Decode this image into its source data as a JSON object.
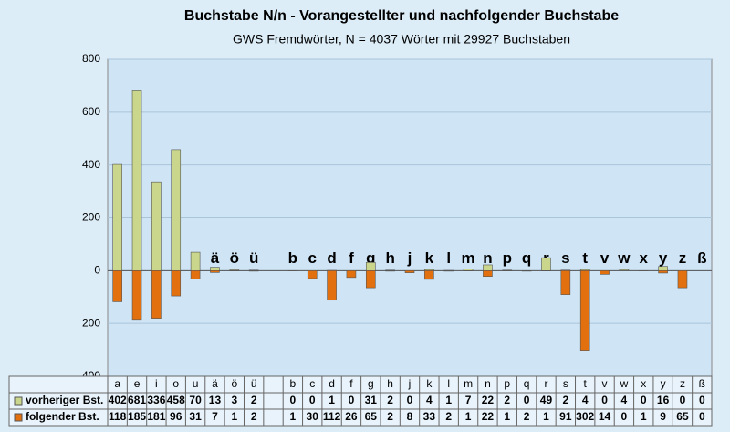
{
  "chart_data": {
    "type": "bar",
    "title": "Buchstabe N/n - Vorangestellter und nachfolgender Buchstabe",
    "subtitle": "GWS Fremdwörter,  N = 4037 Wörter mit 29927 Buchstaben",
    "categories": [
      "a",
      "e",
      "i",
      "o",
      "u",
      "ä",
      "ö",
      "ü",
      null,
      "b",
      "c",
      "d",
      "f",
      "g",
      "h",
      "j",
      "k",
      "l",
      "m",
      "n",
      "p",
      "q",
      "r",
      "s",
      "t",
      "v",
      "w",
      "x",
      "y",
      "z",
      "ß"
    ],
    "series": [
      {
        "name": "vorheriger Bst.",
        "color": "#c9d68c",
        "values": [
          402,
          681,
          336,
          458,
          70,
          13,
          3,
          2,
          null,
          0,
          0,
          1,
          0,
          31,
          2,
          0,
          4,
          1,
          7,
          22,
          2,
          0,
          49,
          2,
          4,
          0,
          4,
          0,
          16,
          0,
          0
        ]
      },
      {
        "name": "folgender Bst.",
        "color": "#e2700f",
        "values": [
          -118,
          -185,
          -181,
          -96,
          -31,
          -7,
          -1,
          -2,
          null,
          -1,
          -30,
          -112,
          -26,
          -65,
          -2,
          -8,
          -33,
          -2,
          -1,
          -22,
          -1,
          -2,
          -1,
          -91,
          -302,
          -14,
          0,
          -1,
          -9,
          -65,
          0
        ],
        "value_labels": [
          "118",
          "185",
          "181",
          "96",
          "31",
          "7",
          "1",
          "2",
          null,
          "1",
          "30",
          "112",
          "26",
          "65",
          "2",
          "8",
          "33",
          "2",
          "1",
          "22",
          "1",
          "2",
          "1",
          "91",
          "302",
          "14",
          "0",
          "1",
          "9",
          "65",
          "0"
        ]
      }
    ],
    "ylim": [
      -400,
      800
    ],
    "yticks": [
      800,
      600,
      400,
      200,
      0,
      {
        "value": -200,
        "label": "200"
      },
      {
        "value": -400,
        "label": "400"
      }
    ],
    "grid": true
  }
}
